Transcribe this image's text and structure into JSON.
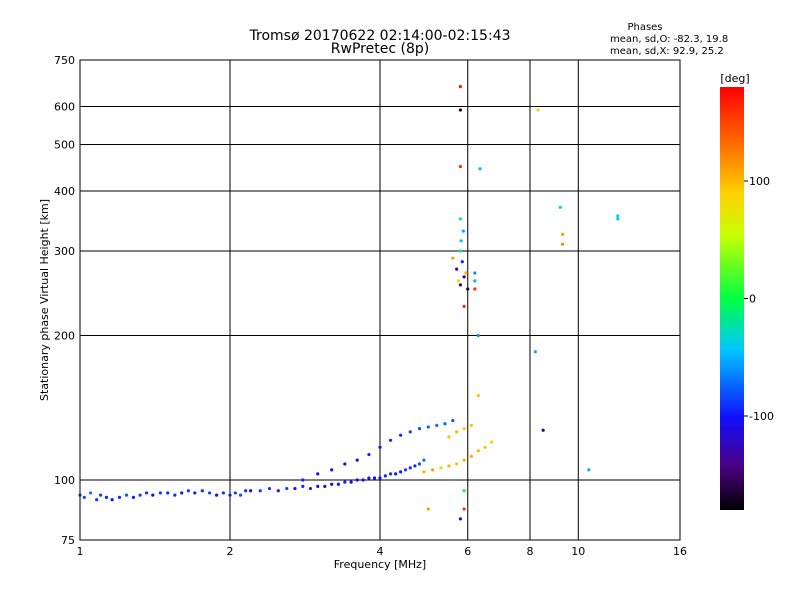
{
  "chart_data": {
    "type": "scatter",
    "title_line1": "Tromsø 20170622 02:14:00-02:15:43",
    "title_line2": "RwPretec (8p)",
    "phases_header": "Phases",
    "phases_o": "mean, sd,O: -82.3, 19.8",
    "phases_x": "mean, sd,X:  92.9, 25.2",
    "xlabel": "Frequency [MHz]",
    "ylabel": "Stationary phase Virtual Height [km]",
    "xscale": "log2",
    "yscale": "log",
    "xlim": [
      1,
      16
    ],
    "ylim": [
      75,
      750
    ],
    "xticks": [
      1,
      2,
      4,
      6,
      8,
      10,
      16
    ],
    "xtick_labels": [
      "1",
      "2",
      "4",
      "6",
      "8",
      "10",
      "16"
    ],
    "yticks": [
      75,
      100,
      200,
      300,
      400,
      500,
      600,
      750
    ],
    "ytick_labels": [
      "75",
      "100",
      "200",
      "300",
      "400",
      "500",
      "600",
      "750"
    ],
    "grid": true,
    "colorbar": {
      "label": "[deg]",
      "range": [
        -180,
        180
      ],
      "ticks": [
        100,
        0,
        -100
      ],
      "tick_labels": [
        "100",
        "0",
        "-100"
      ]
    },
    "series": [
      {
        "name": "trace_low",
        "points": [
          [
            1.0,
            93,
            -75
          ],
          [
            1.02,
            92,
            -80
          ],
          [
            1.05,
            94,
            -70
          ],
          [
            1.08,
            91,
            -90
          ],
          [
            1.1,
            93,
            -85
          ],
          [
            1.13,
            92,
            -95
          ],
          [
            1.16,
            91,
            -100
          ],
          [
            1.2,
            92,
            -90
          ],
          [
            1.24,
            93,
            -80
          ],
          [
            1.28,
            92,
            -95
          ],
          [
            1.32,
            93,
            -85
          ],
          [
            1.36,
            94,
            -90
          ],
          [
            1.4,
            93,
            -100
          ],
          [
            1.45,
            94,
            -85
          ],
          [
            1.5,
            94,
            -95
          ],
          [
            1.55,
            93,
            -90
          ],
          [
            1.6,
            94,
            -100
          ],
          [
            1.65,
            95,
            -85
          ],
          [
            1.7,
            94,
            -95
          ],
          [
            1.76,
            95,
            -90
          ],
          [
            1.82,
            94,
            -85
          ],
          [
            1.88,
            93,
            -100
          ],
          [
            1.94,
            94,
            -90
          ],
          [
            2.0,
            93,
            -95
          ],
          [
            2.05,
            94,
            -85
          ],
          [
            2.1,
            93,
            -80
          ],
          [
            2.15,
            95,
            -90
          ],
          [
            2.2,
            95,
            -100
          ],
          [
            2.3,
            95,
            -85
          ],
          [
            2.4,
            96,
            -90
          ],
          [
            2.5,
            95,
            -95
          ],
          [
            2.6,
            96,
            -85
          ],
          [
            2.7,
            96,
            -100
          ],
          [
            2.8,
            97,
            -90
          ],
          [
            2.9,
            96,
            -95
          ],
          [
            3.0,
            97,
            -105
          ],
          [
            3.1,
            97,
            -100
          ],
          [
            3.2,
            98,
            -110
          ],
          [
            3.3,
            98,
            -100
          ],
          [
            3.4,
            99,
            -95
          ],
          [
            3.5,
            99,
            -105
          ],
          [
            3.6,
            100,
            -110
          ],
          [
            3.7,
            100,
            -100
          ],
          [
            3.8,
            101,
            -95
          ],
          [
            3.9,
            101,
            -105
          ],
          [
            4.0,
            101,
            -100
          ],
          [
            4.1,
            102,
            -95
          ],
          [
            4.2,
            103,
            -90
          ],
          [
            4.3,
            103,
            -100
          ],
          [
            4.4,
            104,
            -95
          ],
          [
            4.5,
            105,
            -85
          ],
          [
            4.6,
            106,
            -90
          ],
          [
            4.7,
            107,
            -95
          ],
          [
            4.8,
            108,
            -80
          ],
          [
            4.9,
            110,
            -70
          ]
        ]
      },
      {
        "name": "trace_upper",
        "points": [
          [
            2.8,
            100,
            -95
          ],
          [
            3.0,
            103,
            -100
          ],
          [
            3.2,
            105,
            -110
          ],
          [
            3.4,
            108,
            -100
          ],
          [
            3.6,
            110,
            -105
          ],
          [
            3.8,
            113,
            -95
          ],
          [
            4.0,
            117,
            -100
          ],
          [
            4.2,
            121,
            -90
          ],
          [
            4.4,
            124,
            -95
          ],
          [
            4.6,
            126,
            -85
          ],
          [
            4.8,
            128,
            -80
          ],
          [
            5.0,
            129,
            -75
          ],
          [
            5.2,
            130,
            -70
          ],
          [
            5.4,
            131,
            -75
          ],
          [
            5.6,
            133,
            -80
          ]
        ]
      },
      {
        "name": "x_mode",
        "points": [
          [
            4.9,
            104,
            100
          ],
          [
            5.1,
            105,
            110
          ],
          [
            5.3,
            106,
            90
          ],
          [
            5.5,
            107,
            100
          ],
          [
            5.7,
            108,
            95
          ],
          [
            5.9,
            110,
            100
          ],
          [
            6.1,
            112,
            105
          ],
          [
            6.3,
            115,
            100
          ],
          [
            6.5,
            117,
            95
          ],
          [
            6.7,
            120,
            90
          ],
          [
            5.5,
            123,
            95
          ],
          [
            5.7,
            126,
            100
          ],
          [
            5.9,
            128,
            90
          ],
          [
            6.1,
            130,
            95
          ],
          [
            6.3,
            150,
            95
          ]
        ]
      },
      {
        "name": "f_layer_scatter",
        "points": [
          [
            5.8,
            255,
            -150
          ],
          [
            5.9,
            265,
            -140
          ],
          [
            5.7,
            275,
            -130
          ],
          [
            5.85,
            285,
            -95
          ],
          [
            6.0,
            250,
            -160
          ],
          [
            5.75,
            260,
            90
          ],
          [
            5.95,
            270,
            100
          ],
          [
            5.6,
            290,
            110
          ],
          [
            5.8,
            300,
            -20
          ],
          [
            5.82,
            315,
            -40
          ],
          [
            5.88,
            330,
            -50
          ],
          [
            5.8,
            350,
            -10
          ],
          [
            6.2,
            260,
            -50
          ],
          [
            6.2,
            250,
            160
          ],
          [
            6.2,
            270,
            -60
          ],
          [
            5.9,
            230,
            160
          ],
          [
            5.8,
            450,
            160
          ],
          [
            5.8,
            660,
            170
          ],
          [
            5.8,
            590,
            -160
          ],
          [
            6.35,
            445,
            -50
          ],
          [
            6.3,
            200,
            -60
          ],
          [
            8.3,
            590,
            90
          ],
          [
            8.2,
            185,
            -50
          ],
          [
            9.2,
            370,
            -30
          ],
          [
            9.3,
            325,
            110
          ],
          [
            9.3,
            310,
            120
          ],
          [
            10.5,
            105,
            -50
          ],
          [
            12.0,
            350,
            -40
          ],
          [
            12.0,
            355,
            -30
          ],
          [
            8.5,
            127,
            -150
          ],
          [
            5.9,
            87,
            160
          ],
          [
            5.8,
            83,
            -130
          ],
          [
            5.0,
            87,
            110
          ],
          [
            5.9,
            95,
            0
          ]
        ]
      }
    ]
  }
}
